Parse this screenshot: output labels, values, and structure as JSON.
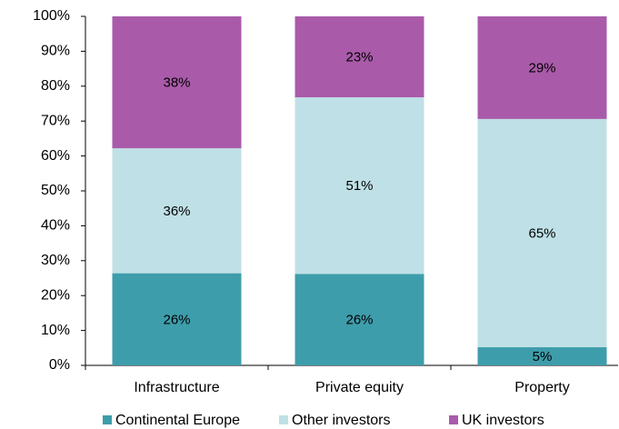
{
  "chart_data": {
    "type": "stacked_bar",
    "categories": [
      "Infrastructure",
      "Private equity",
      "Property"
    ],
    "series": [
      {
        "name": "Continental Europe",
        "color": "#3e9dab",
        "values": [
          26.4,
          26.2,
          5.2
        ],
        "value_labels": [
          "26%",
          "26%",
          "5%"
        ]
      },
      {
        "name": "Other investors",
        "color": "#bfe0e6",
        "values": [
          35.8,
          50.6,
          65.4
        ],
        "value_labels": [
          "36%",
          "51%",
          "65%"
        ]
      },
      {
        "name": "UK investors",
        "color": "#a95ba9",
        "values": [
          37.8,
          23.2,
          29.4
        ],
        "value_labels": [
          "38%",
          "23%",
          "29%"
        ]
      }
    ],
    "ylim": [
      0,
      100
    ],
    "yticks": [
      {
        "value": 0,
        "label": "0%"
      },
      {
        "value": 10,
        "label": "10%"
      },
      {
        "value": 20,
        "label": "20%"
      },
      {
        "value": 30,
        "label": "30%"
      },
      {
        "value": 40,
        "label": "40%"
      },
      {
        "value": 50,
        "label": "50%"
      },
      {
        "value": 60,
        "label": "60%"
      },
      {
        "value": 70,
        "label": "70%"
      },
      {
        "value": 80,
        "label": "80%"
      },
      {
        "value": 90,
        "label": "90%"
      },
      {
        "value": 100,
        "label": "100%"
      }
    ],
    "legend": "bottom",
    "grid": false
  }
}
